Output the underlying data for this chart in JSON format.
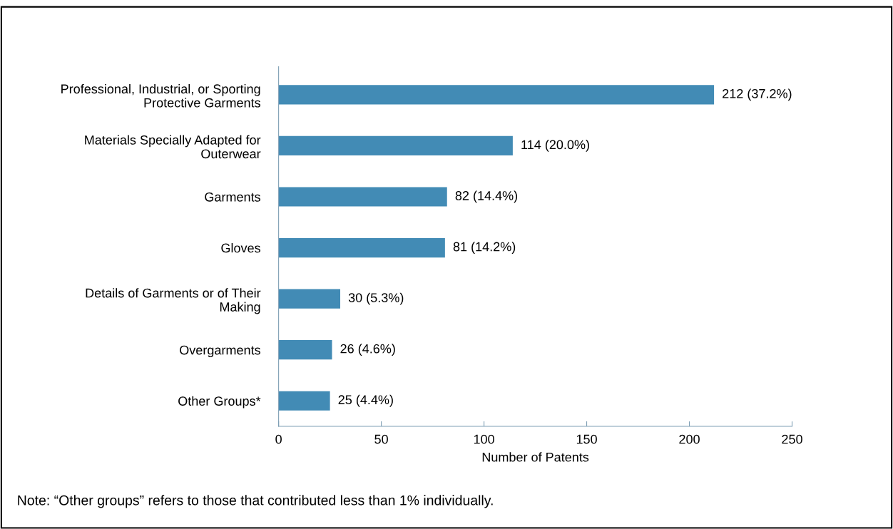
{
  "chart_data": {
    "type": "bar",
    "orientation": "horizontal",
    "categories": [
      "Professional, Industrial, or Sporting\nProtective Garments",
      "Materials Specially Adapted for\nOuterwear",
      "Garments",
      "Gloves",
      "Details of Garments or of Their\nMaking",
      "Overgarments",
      "Other Groups*"
    ],
    "values": [
      212,
      114,
      82,
      81,
      30,
      26,
      25
    ],
    "value_labels": [
      "212 (37.2%)",
      "114 (20.0%)",
      "82 (14.4%)",
      "81 (14.2%)",
      "30 (5.3%)",
      "26 (4.6%)",
      "25 (4.4%)"
    ],
    "color": "#428bb5",
    "xlabel": "Number of Patents",
    "xlim": [
      0,
      250
    ],
    "xticks": [
      0,
      50,
      100,
      150,
      200,
      250
    ],
    "grid": false,
    "legend": false,
    "annotations": [
      "Note: “Other groups” refers to those that contributed less than 1% individually."
    ]
  }
}
